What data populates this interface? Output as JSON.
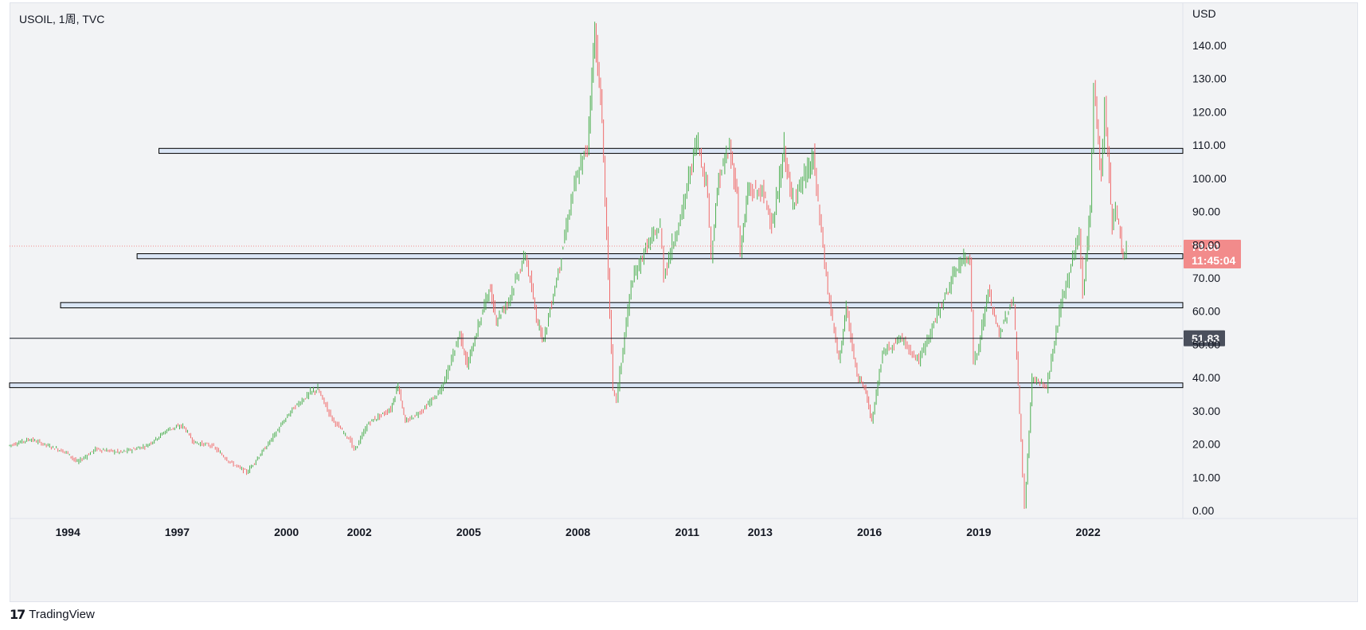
{
  "header": {
    "symbol_title": "USOIL, 1周, TVC"
  },
  "footer": {
    "brand": "TradingView",
    "logo_text": "17"
  },
  "chart_data": {
    "type": "candlestick",
    "symbol": "USOIL",
    "interval": "1周",
    "exchange": "TVC",
    "currency": "USD",
    "ylim": [
      0,
      150
    ],
    "y_ticks": [
      "140.00",
      "130.00",
      "120.00",
      "110.00",
      "100.00",
      "90.00",
      "80.00",
      "70.00",
      "60.00",
      "50.00",
      "40.00",
      "30.00",
      "20.00",
      "10.00",
      "0.00"
    ],
    "x_ticks": [
      "1994",
      "1997",
      "2000",
      "2002",
      "2005",
      "2008",
      "2011",
      "2013",
      "2016",
      "2019",
      "2022"
    ],
    "x_range_years": [
      1992.4,
      2024.6
    ],
    "last_price": {
      "value": "79.60",
      "countdown": "11:45:04",
      "color": "#f28b8b"
    },
    "marker_line": {
      "value": "51.83",
      "color": "#4a4f5c"
    },
    "support_resistance_zones": [
      {
        "low": 107.5,
        "high": 109.0,
        "start_year": 1996.5
      },
      {
        "low": 75.8,
        "high": 77.3,
        "start_year": 1995.9
      },
      {
        "low": 61.0,
        "high": 62.6,
        "start_year": 1993.8
      },
      {
        "low": 37.0,
        "high": 38.4,
        "start_year": 1992.4
      }
    ],
    "price_path": [
      [
        1992.4,
        19.5
      ],
      [
        1993.0,
        21.5
      ],
      [
        1993.5,
        19.5
      ],
      [
        1994.0,
        17.5
      ],
      [
        1994.3,
        14.5
      ],
      [
        1994.8,
        18.5
      ],
      [
        1995.5,
        17.5
      ],
      [
        1996.2,
        19.5
      ],
      [
        1996.8,
        24.5
      ],
      [
        1997.2,
        25.5
      ],
      [
        1997.5,
        20.5
      ],
      [
        1998.0,
        19.5
      ],
      [
        1998.5,
        14.5
      ],
      [
        1998.95,
        11.5
      ],
      [
        1999.5,
        19.5
      ],
      [
        2000.2,
        30.5
      ],
      [
        2000.7,
        35.5
      ],
      [
        2000.9,
        36.5
      ],
      [
        2001.3,
        27.5
      ],
      [
        2001.8,
        21.0
      ],
      [
        2001.9,
        18.0
      ],
      [
        2002.3,
        26.5
      ],
      [
        2002.9,
        30.5
      ],
      [
        2003.1,
        38.0
      ],
      [
        2003.3,
        26.5
      ],
      [
        2003.8,
        30.5
      ],
      [
        2004.3,
        36.5
      ],
      [
        2004.8,
        53.5
      ],
      [
        2005.0,
        43.5
      ],
      [
        2005.6,
        67.0
      ],
      [
        2005.8,
        57.5
      ],
      [
        2006.1,
        62.5
      ],
      [
        2006.6,
        77.0
      ],
      [
        2006.9,
        58.0
      ],
      [
        2007.1,
        51.5
      ],
      [
        2007.5,
        72.0
      ],
      [
        2007.9,
        96.0
      ],
      [
        2008.3,
        110.0
      ],
      [
        2008.5,
        145.0
      ],
      [
        2008.7,
        117.0
      ],
      [
        2009.0,
        36.0
      ],
      [
        2009.1,
        33.5
      ],
      [
        2009.5,
        68.0
      ],
      [
        2009.9,
        79.0
      ],
      [
        2010.3,
        85.5
      ],
      [
        2010.4,
        71.0
      ],
      [
        2010.9,
        90.0
      ],
      [
        2011.3,
        112.0
      ],
      [
        2011.6,
        96.0
      ],
      [
        2011.7,
        77.0
      ],
      [
        2011.9,
        100.0
      ],
      [
        2012.2,
        109.0
      ],
      [
        2012.4,
        95.5
      ],
      [
        2012.5,
        78.0
      ],
      [
        2012.7,
        96.0
      ],
      [
        2013.1,
        96.0
      ],
      [
        2013.4,
        86.0
      ],
      [
        2013.7,
        109.0
      ],
      [
        2013.9,
        93.0
      ],
      [
        2014.3,
        101.0
      ],
      [
        2014.5,
        106.0
      ],
      [
        2014.9,
        66.0
      ],
      [
        2015.2,
        45.0
      ],
      [
        2015.4,
        61.0
      ],
      [
        2015.7,
        40.0
      ],
      [
        2015.9,
        38.0
      ],
      [
        2016.1,
        26.5
      ],
      [
        2016.4,
        47.5
      ],
      [
        2016.9,
        52.0
      ],
      [
        2017.4,
        45.0
      ],
      [
        2017.9,
        59.0
      ],
      [
        2018.5,
        74.5
      ],
      [
        2018.8,
        76.5
      ],
      [
        2018.9,
        45.0
      ],
      [
        2019.0,
        47.0
      ],
      [
        2019.3,
        66.0
      ],
      [
        2019.6,
        53.0
      ],
      [
        2019.9,
        61.5
      ],
      [
        2020.0,
        63.0
      ],
      [
        2020.2,
        21.0
      ],
      [
        2020.3,
        0.5
      ],
      [
        2020.5,
        40.0
      ],
      [
        2020.9,
        37.0
      ],
      [
        2021.3,
        62.0
      ],
      [
        2021.8,
        84.0
      ],
      [
        2021.9,
        65.0
      ],
      [
        2022.1,
        92.0
      ],
      [
        2022.2,
        128.0
      ],
      [
        2022.4,
        100.0
      ],
      [
        2022.5,
        122.0
      ],
      [
        2022.7,
        86.0
      ],
      [
        2022.8,
        92.0
      ],
      [
        2023.0,
        75.5
      ],
      [
        2023.1,
        79.6
      ]
    ],
    "colors": {
      "up": "#4caf50",
      "down": "#f06b6b",
      "zone_fill": "#dbe6f6",
      "zone_border": "#000000"
    }
  }
}
